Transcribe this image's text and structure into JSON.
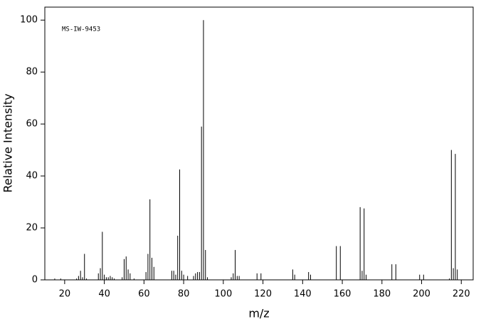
{
  "chart_data": {
    "type": "bar",
    "annotation": "MS-IW-9453",
    "xlabel": "m/z",
    "ylabel": "Relative Intensity",
    "color": "#000000",
    "x": [
      15,
      18,
      26,
      27,
      28,
      29,
      30,
      31,
      37,
      38,
      39,
      40,
      41,
      42,
      43,
      44,
      45,
      49,
      50,
      51,
      52,
      53,
      55,
      61,
      62,
      63,
      64,
      65,
      74,
      75,
      76,
      77,
      78,
      79,
      80,
      82,
      85,
      86,
      87,
      88,
      89,
      90,
      91,
      92,
      104,
      105,
      106,
      107,
      108,
      117,
      119,
      135,
      136,
      143,
      144,
      157,
      159,
      169,
      170,
      171,
      172,
      185,
      187,
      199,
      201,
      214,
      215,
      216,
      217,
      218
    ],
    "values": [
      0.5,
      0.5,
      0.5,
      1.5,
      3.5,
      1,
      10,
      0.5,
      2.5,
      4.5,
      18.5,
      2,
      1,
      1,
      1.5,
      1,
      0.5,
      1,
      8,
      9,
      4,
      2.5,
      0.5,
      3,
      10,
      31,
      8.5,
      5,
      3.5,
      3.5,
      2,
      17,
      42.5,
      3.5,
      2,
      1.5,
      1.5,
      2.5,
      3,
      3,
      59,
      100,
      11.5,
      1,
      1,
      2.5,
      11.5,
      1.5,
      1.5,
      2.5,
      2.5,
      4,
      2,
      3,
      2,
      13,
      13,
      28,
      3.5,
      27.5,
      2,
      6,
      6,
      2,
      2,
      0.5,
      50,
      4.5,
      48.5,
      4
    ],
    "xlim": [
      10,
      226
    ],
    "ylim": [
      0,
      105
    ],
    "xticks": [
      20,
      40,
      60,
      80,
      100,
      120,
      140,
      160,
      180,
      200,
      220
    ],
    "yticks": [
      0,
      20,
      40,
      60,
      80,
      100
    ]
  }
}
